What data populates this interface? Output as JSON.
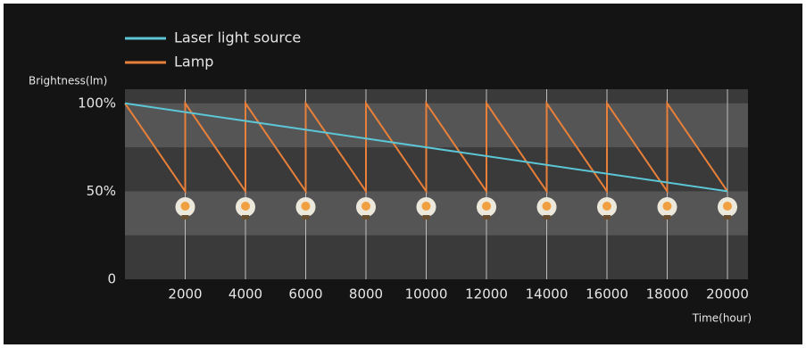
{
  "chart_data": {
    "type": "line",
    "ylabel": "Brightness(lm)",
    "xlabel": "Time(hour)",
    "xlim": [
      0,
      20000
    ],
    "ylim": [
      0,
      108
    ],
    "xticks": [
      2000,
      4000,
      6000,
      8000,
      10000,
      12000,
      14000,
      16000,
      18000,
      20000
    ],
    "yticks": [
      0,
      {
        "value": 50,
        "label": "50%"
      },
      {
        "value": 100,
        "label": "100%"
      }
    ],
    "grid": true,
    "series": [
      {
        "name": "Laser light source",
        "color": "#5cc6d6",
        "x": [
          0,
          20000
        ],
        "values": [
          100,
          50
        ]
      },
      {
        "name": "Lamp",
        "color": "#e8803a",
        "x": [
          0,
          2000,
          2000,
          4000,
          4000,
          6000,
          6000,
          8000,
          8000,
          10000,
          10000,
          12000,
          12000,
          14000,
          14000,
          16000,
          16000,
          18000,
          18000,
          20000
        ],
        "values": [
          100,
          50,
          100,
          50,
          100,
          50,
          100,
          50,
          100,
          50,
          100,
          50,
          100,
          50,
          100,
          50,
          100,
          50,
          100,
          50
        ]
      }
    ]
  }
}
